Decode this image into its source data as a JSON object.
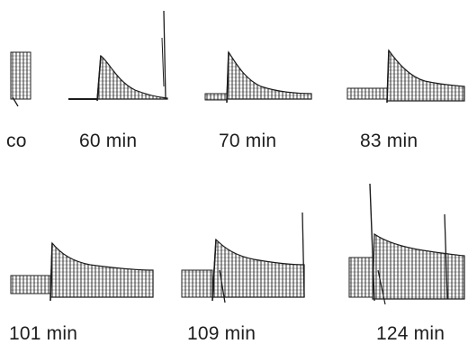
{
  "panels": [
    {
      "label": "co"
    },
    {
      "label": "60 min"
    },
    {
      "label": "70 min"
    },
    {
      "label": "83 min"
    },
    {
      "label": "101 min"
    },
    {
      "label": "109 min"
    },
    {
      "label": "124 min"
    }
  ],
  "colors": {
    "ink": "#1c1c1c",
    "background": "#ffffff"
  }
}
